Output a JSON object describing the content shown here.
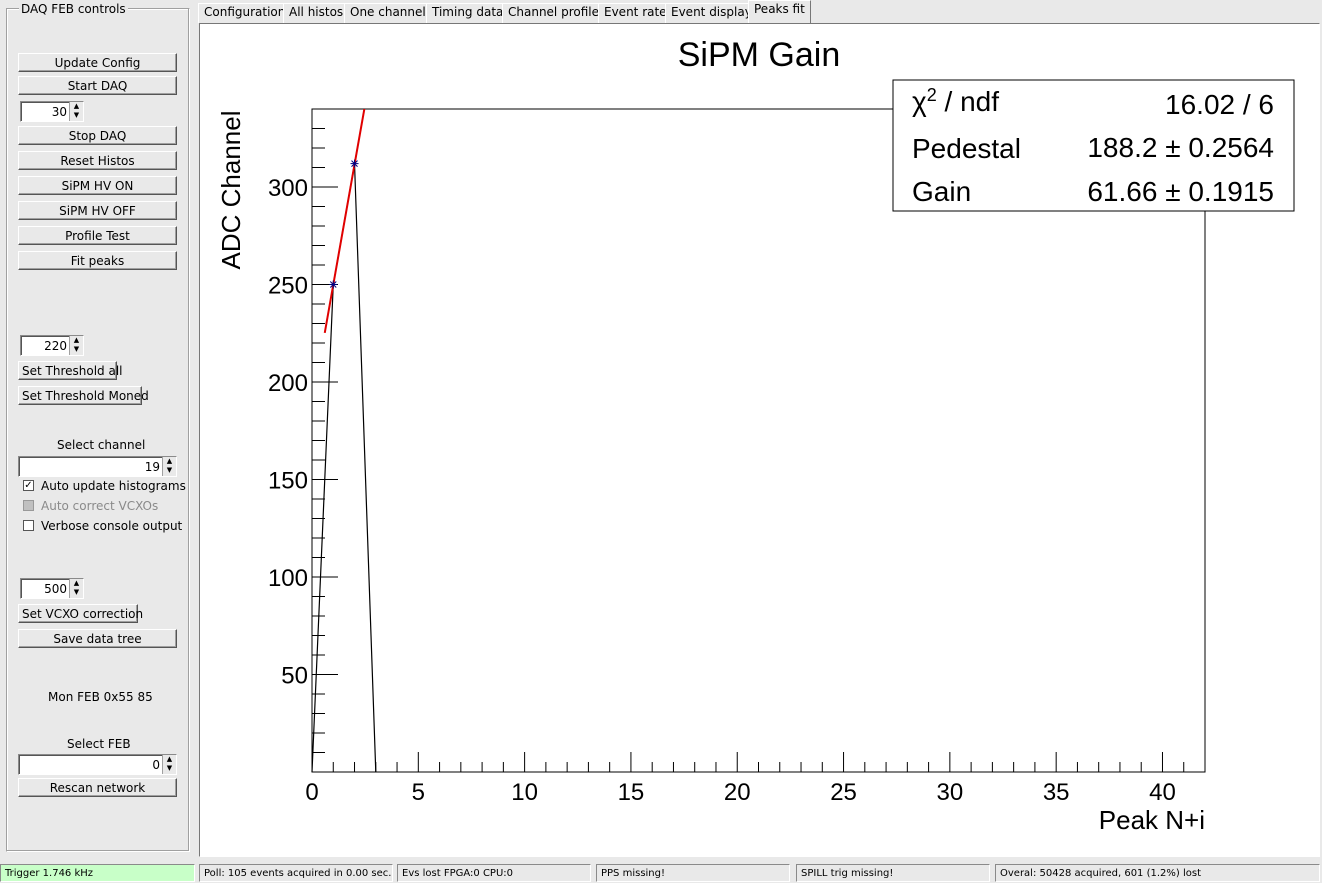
{
  "panel": {
    "title": "DAQ FEB controls",
    "buttons": {
      "update_config": "Update Config",
      "start_daq": "Start DAQ",
      "stop_daq": "Stop DAQ",
      "reset_histos": "Reset Histos",
      "hv_on": "SiPM HV ON",
      "hv_off": "SiPM HV OFF",
      "profile_test": "Profile Test",
      "fit_peaks": "Fit peaks",
      "set_threshold_all": "Set Threshold all",
      "set_threshold_moned": "Set Threshold Moned",
      "set_vcxo": "Set VCXO correction",
      "save_tree": "Save data tree",
      "rescan": "Rescan network"
    },
    "spin_daq_time": "30",
    "spin_threshold": "220",
    "select_channel_label": "Select channel",
    "spin_channel": "19",
    "checks": {
      "auto_update": {
        "label": "Auto update histograms",
        "checked": true
      },
      "auto_correct": {
        "label": "Auto correct VCXOs",
        "checked": false,
        "disabled": true
      },
      "verbose": {
        "label": "Verbose console output",
        "checked": false
      }
    },
    "spin_vcxo": "500",
    "mon_feb": "Mon FEB 0x55 85",
    "select_feb_label": "Select FEB",
    "spin_feb": "0"
  },
  "tabs": [
    "Configuration",
    "All histos",
    "One channel",
    "Timing data",
    "Channel profile",
    "Event rate",
    "Event display",
    "Peaks fit"
  ],
  "active_tab": "Peaks fit",
  "chart_data": {
    "type": "scatter",
    "title": "SiPM Gain",
    "xlabel": "Peak N+i",
    "ylabel": "ADC Channel",
    "xlim": [
      0,
      42
    ],
    "ylim": [
      0,
      340
    ],
    "xticks": [
      0,
      5,
      10,
      15,
      20,
      25,
      30,
      35,
      40
    ],
    "yticks": [
      50,
      100,
      150,
      200,
      250,
      300
    ],
    "points": [
      {
        "x": 1,
        "y": 250
      },
      {
        "x": 2,
        "y": 312
      }
    ],
    "graph_line": [
      [
        0,
        0
      ],
      [
        1,
        250
      ],
      [
        2,
        312
      ],
      [
        3,
        0
      ]
    ],
    "fit": {
      "pedestal": 188.2,
      "gain": 61.66,
      "x_from": 0.6,
      "x_to": 3.2,
      "color": "#e00000"
    },
    "marker_color": "#00007f",
    "stats": {
      "chi2_label": "ndf",
      "chi2_value": "16.02 / 6",
      "pedestal_label": "Pedestal",
      "pedestal_value": "188.2 ± 0.2564",
      "gain_label": "Gain",
      "gain_value": "61.66 ± 0.1915"
    }
  },
  "status": {
    "trigger": "Trigger 1.746 kHz",
    "trigger_color": "#c8ffc8",
    "poll": "Poll: 105 events acquired in 0.00 sec.",
    "evs_lost": "Evs lost FPGA:0 CPU:0",
    "pps": "PPS missing!",
    "spill": "SPILL trig missing!",
    "overall": "Overal: 50428 acquired, 601 (1.2%) lost"
  }
}
